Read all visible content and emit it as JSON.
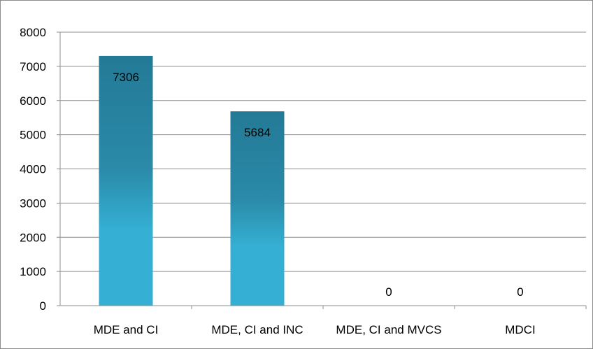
{
  "chart_data": {
    "type": "bar",
    "categories": [
      "MDE and  CI",
      "MDE, CI and INC",
      "MDE, CI and MVCS",
      "MDCI"
    ],
    "values": [
      7306,
      5684,
      0,
      0
    ],
    "data_labels": [
      "7306",
      "5684",
      "0",
      "0"
    ],
    "ylim": [
      0,
      8000
    ],
    "y_ticks": [
      0,
      1000,
      2000,
      3000,
      4000,
      5000,
      6000,
      7000,
      8000
    ],
    "y_tick_labels": [
      "0",
      "1000",
      "2000",
      "3000",
      "4000",
      "5000",
      "6000",
      "7000",
      "8000"
    ],
    "grid": true,
    "legend": "none",
    "colors": {
      "bar_top": "#237a96",
      "bar_mid": "#2a8aa8",
      "bar_bottom": "#35b0d4",
      "grid": "#8c8c8c",
      "axis": "#8c8c8c"
    }
  }
}
